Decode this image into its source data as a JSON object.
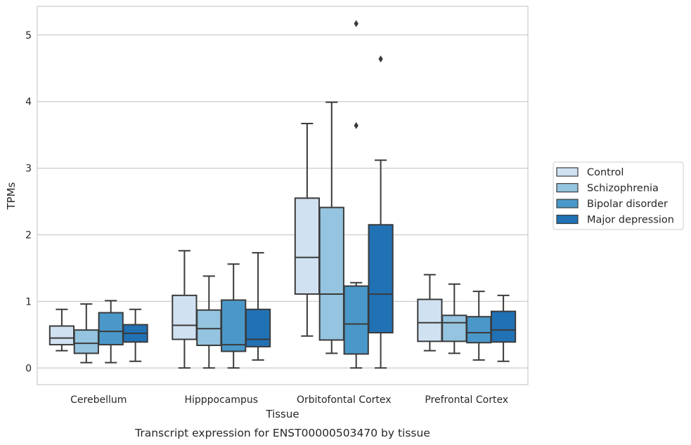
{
  "chart_data": {
    "type": "box",
    "caption": "Transcript expression for ENST00000503470 by tissue",
    "xlabel": "Tissue",
    "ylabel": "TPMs",
    "ylim": [
      -0.25,
      5.43
    ],
    "yticks": [
      0,
      1,
      2,
      3,
      4,
      5
    ],
    "grid": "horizontal",
    "legend_position": "right",
    "categories": [
      "Cerebellum",
      "Hipppocampus",
      "Orbitofontal Cortex",
      "Prefrontal Cortex"
    ],
    "series": [
      {
        "name": "Control",
        "color": "#d0e1f2",
        "boxes": [
          {
            "whisker_low": 0.26,
            "q1": 0.35,
            "median": 0.45,
            "q3": 0.63,
            "whisker_high": 0.88,
            "outliers": []
          },
          {
            "whisker_low": 0.0,
            "q1": 0.43,
            "median": 0.64,
            "q3": 1.09,
            "whisker_high": 1.76,
            "outliers": []
          },
          {
            "whisker_low": 0.48,
            "q1": 1.11,
            "median": 1.66,
            "q3": 2.55,
            "whisker_high": 3.67,
            "outliers": []
          },
          {
            "whisker_low": 0.26,
            "q1": 0.4,
            "median": 0.68,
            "q3": 1.03,
            "whisker_high": 1.4,
            "outliers": []
          }
        ]
      },
      {
        "name": "Schizophrenia",
        "color": "#94c4df",
        "boxes": [
          {
            "whisker_low": 0.08,
            "q1": 0.22,
            "median": 0.37,
            "q3": 0.57,
            "whisker_high": 0.96,
            "outliers": []
          },
          {
            "whisker_low": 0.0,
            "q1": 0.34,
            "median": 0.59,
            "q3": 0.87,
            "whisker_high": 1.38,
            "outliers": []
          },
          {
            "whisker_low": 0.22,
            "q1": 0.42,
            "median": 1.11,
            "q3": 2.41,
            "whisker_high": 3.99,
            "outliers": []
          },
          {
            "whisker_low": 0.22,
            "q1": 0.4,
            "median": 0.68,
            "q3": 0.79,
            "whisker_high": 1.26,
            "outliers": []
          }
        ]
      },
      {
        "name": "Bipolar disorder",
        "color": "#4a98c9",
        "boxes": [
          {
            "whisker_low": 0.08,
            "q1": 0.35,
            "median": 0.55,
            "q3": 0.83,
            "whisker_high": 1.01,
            "outliers": []
          },
          {
            "whisker_low": 0.0,
            "q1": 0.25,
            "median": 0.35,
            "q3": 1.02,
            "whisker_high": 1.56,
            "outliers": []
          },
          {
            "whisker_low": 0.0,
            "q1": 0.21,
            "median": 0.66,
            "q3": 1.23,
            "whisker_high": 1.28,
            "outliers": [
              3.64,
              5.17
            ]
          },
          {
            "whisker_low": 0.12,
            "q1": 0.38,
            "median": 0.53,
            "q3": 0.77,
            "whisker_high": 1.15,
            "outliers": []
          }
        ]
      },
      {
        "name": "Major depression",
        "color": "#2171b5",
        "boxes": [
          {
            "whisker_low": 0.1,
            "q1": 0.39,
            "median": 0.52,
            "q3": 0.65,
            "whisker_high": 0.88,
            "outliers": []
          },
          {
            "whisker_low": 0.12,
            "q1": 0.32,
            "median": 0.43,
            "q3": 0.88,
            "whisker_high": 1.73,
            "outliers": []
          },
          {
            "whisker_low": 0.0,
            "q1": 0.53,
            "median": 1.11,
            "q3": 2.15,
            "whisker_high": 3.12,
            "outliers": [
              4.64
            ]
          },
          {
            "whisker_low": 0.1,
            "q1": 0.39,
            "median": 0.57,
            "q3": 0.85,
            "whisker_high": 1.09,
            "outliers": []
          }
        ]
      }
    ]
  }
}
